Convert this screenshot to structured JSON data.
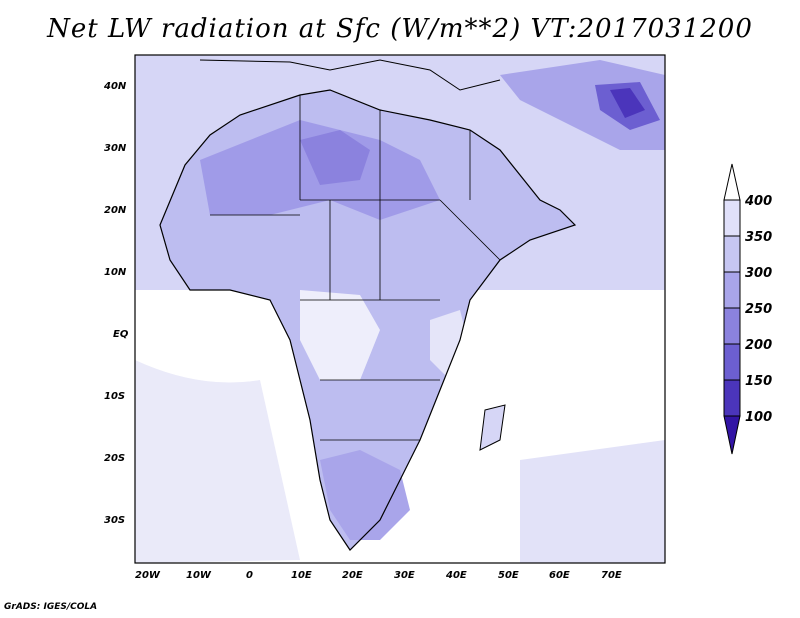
{
  "title": "Net LW radiation at Sfc (W/m**2) VT:2017031200",
  "footer": "GrADS: IGES/COLA",
  "map": {
    "lat_labels": [
      "40N",
      "30N",
      "20N",
      "10N",
      "EQ",
      "10S",
      "20S",
      "30S"
    ],
    "lon_labels": [
      "20W",
      "10W",
      "0",
      "10E",
      "20E",
      "30E",
      "40E",
      "50E",
      "60E",
      "70E"
    ]
  },
  "colorbar": {
    "labels": [
      "400",
      "350",
      "300",
      "250",
      "200",
      "150",
      "100"
    ],
    "colors": [
      "#e0e0fa",
      "#c6c6f2",
      "#a9a5ea",
      "#8b82de",
      "#6c5fd1",
      "#4b35bb",
      "#3214a5",
      "#ffffff"
    ]
  }
}
